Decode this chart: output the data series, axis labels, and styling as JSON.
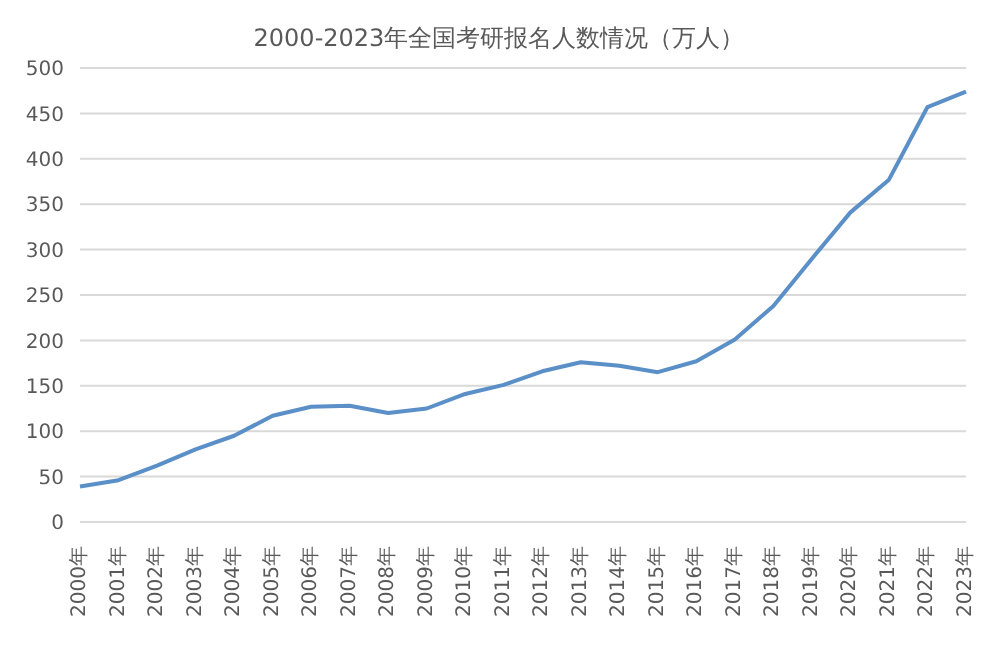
{
  "chart_data": {
    "type": "line",
    "title": "2000-2023年全国考研报名人数情况（万人）",
    "categories": [
      "2000年",
      "2001年",
      "2002年",
      "2003年",
      "2004年",
      "2005年",
      "2006年",
      "2007年",
      "2008年",
      "2009年",
      "2010年",
      "2011年",
      "2012年",
      "2013年",
      "2014年",
      "2015年",
      "2016年",
      "2017年",
      "2018年",
      "2019年",
      "2020年",
      "2021年",
      "2022年",
      "2023年"
    ],
    "series": [
      {
        "color": "#5b8fc7",
        "values": [
          39,
          46,
          62,
          80,
          95,
          117,
          127,
          128,
          120,
          125,
          141,
          151,
          166,
          176,
          172,
          165,
          177,
          201,
          238,
          290,
          341,
          377,
          457,
          474
        ]
      }
    ],
    "ylim": [
      0,
      500
    ],
    "yticks": [
      0,
      50,
      100,
      150,
      200,
      250,
      300,
      350,
      400,
      450,
      500
    ],
    "grid": "y",
    "legend": false,
    "marker": "none",
    "line_style": "solid"
  }
}
